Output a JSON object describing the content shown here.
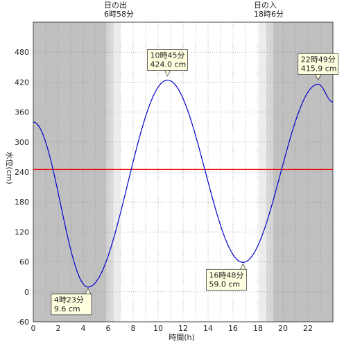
{
  "chart_data": {
    "type": "line",
    "xlabel": "時間(h)",
    "ylabel": "水位(cm)",
    "xlim": [
      0,
      24
    ],
    "ylim": [
      -60,
      540
    ],
    "x_ticks": [
      0,
      2,
      4,
      6,
      8,
      10,
      12,
      14,
      16,
      18,
      20,
      22
    ],
    "y_ticks": [
      -60,
      0,
      60,
      120,
      180,
      240,
      300,
      360,
      420,
      480
    ],
    "reference_line": {
      "value": 245,
      "color": "#ee0000"
    },
    "sunrise": {
      "label": "日の出",
      "time": "6時58分",
      "hour": 6.967
    },
    "sunset": {
      "label": "日の入",
      "time": "18時6分",
      "hour": 18.1
    },
    "extrema": [
      {
        "hour": 4.383,
        "value": 9.6,
        "time": "4時23分",
        "level": "9.6 cm"
      },
      {
        "hour": 10.75,
        "value": 424.0,
        "time": "10時45分",
        "level": "424.0 cm"
      },
      {
        "hour": 16.8,
        "value": 59.0,
        "time": "16時48分",
        "level": "59.0 cm"
      },
      {
        "hour": 22.817,
        "value": 415.9,
        "time": "22時49分",
        "level": "415.9 cm"
      }
    ],
    "series": [
      {
        "color": "#0000cc",
        "start": {
          "hour": 0,
          "value": 340
        },
        "end": {
          "hour": 24,
          "value": 380
        }
      }
    ],
    "colors": {
      "night": "#c0c0c0",
      "twilight": "#d8d8d8",
      "day": "#ffffff",
      "label_box": "#ffffe0"
    }
  }
}
